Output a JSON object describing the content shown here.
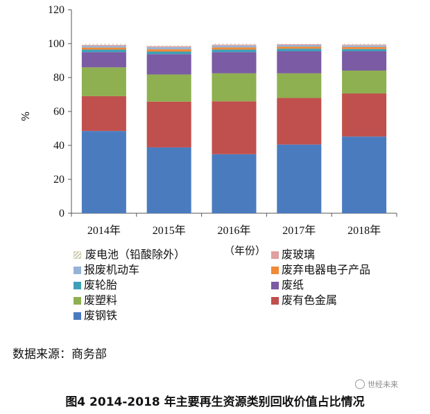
{
  "chart_data": {
    "type": "stacked-bar",
    "title": "",
    "ylabel": "%",
    "xunit": "（年份）",
    "ylim": [
      0,
      120
    ],
    "yticks": [
      0,
      20,
      40,
      60,
      80,
      100,
      120
    ],
    "categories": [
      "2014年",
      "2015年",
      "2016年",
      "2017年",
      "2018年"
    ],
    "series": [
      {
        "name": "废钢铁",
        "color": "#4b7bbf",
        "values": [
          48.5,
          38.8,
          34.8,
          40.5,
          45.2
        ]
      },
      {
        "name": "废有色金属",
        "color": "#c0504d",
        "values": [
          20.5,
          27.0,
          31.2,
          27.5,
          25.4
        ]
      },
      {
        "name": "废塑料",
        "color": "#8eb050",
        "values": [
          17.0,
          16.0,
          16.5,
          14.5,
          13.5
        ]
      },
      {
        "name": "废纸",
        "color": "#7b5ba3",
        "values": [
          9.0,
          12.0,
          12.5,
          13.0,
          11.4
        ]
      },
      {
        "name": "废轮胎",
        "color": "#3ea0b8",
        "values": [
          1.5,
          1.5,
          1.5,
          1.5,
          1.3
        ]
      },
      {
        "name": "废弃电器电子产品",
        "color": "#f08a38",
        "values": [
          1.2,
          1.4,
          1.3,
          1.2,
          1.2
        ]
      },
      {
        "name": "报废机动车",
        "color": "#95b3d7",
        "values": [
          1.0,
          1.2,
          1.1,
          1.0,
          0.9
        ]
      },
      {
        "name": "废玻璃",
        "color": "#e0a0a0",
        "values": [
          0.5,
          0.6,
          0.5,
          0.5,
          0.5
        ]
      },
      {
        "name": "废电池（铅酸除外）",
        "color": "#d6d2b6",
        "pattern": "hatch",
        "values": [
          0.8,
          0.5,
          0.6,
          0.3,
          0.6
        ]
      }
    ],
    "legend": [
      {
        "label": "废电池（铅酸除外）",
        "series": 8
      },
      {
        "label": "废玻璃",
        "series": 7
      },
      {
        "label": "报废机动车",
        "series": 6
      },
      {
        "label": "废弃电器电子产品",
        "series": 5
      },
      {
        "label": "废轮胎",
        "series": 4
      },
      {
        "label": "废纸",
        "series": 3
      },
      {
        "label": "废塑料",
        "series": 2
      },
      {
        "label": "废有色金属",
        "series": 1
      },
      {
        "label": "废钢铁",
        "series": 0
      }
    ]
  },
  "source_text": "数据来源：商务部",
  "caption": "图4 2014-2018 年主要再生资源类别回收价值占比情况",
  "watermark": "世经未来"
}
